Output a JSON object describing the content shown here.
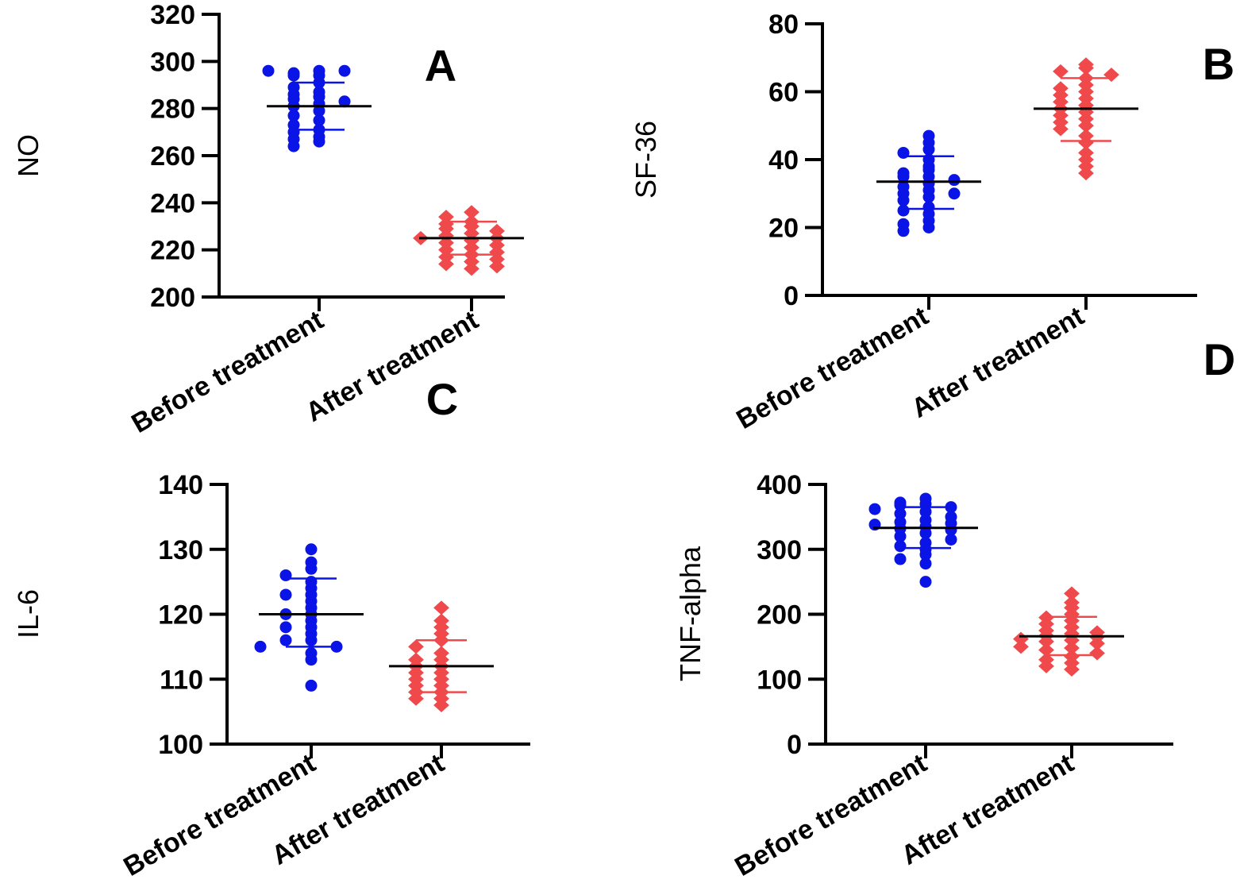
{
  "figure": {
    "colors": {
      "before": "#0a14e6",
      "after": "#f0494c",
      "mean": "#000000",
      "axis": "#000000"
    }
  },
  "chart_data": [
    {
      "type": "scatter",
      "panel": "A",
      "ylabel": "NO",
      "categories": [
        "Before treatment",
        "After treatment"
      ],
      "ylim": [
        200,
        320
      ],
      "yticks": [
        200,
        220,
        240,
        260,
        280,
        300,
        320
      ],
      "series": [
        {
          "name": "Before treatment",
          "marker": "circle",
          "mean": 281,
          "sd_low": 271,
          "sd_high": 291,
          "values": [
            296,
            295,
            294,
            294,
            296,
            296,
            291,
            289,
            287,
            286,
            285,
            284,
            283,
            282,
            281,
            279,
            277,
            275,
            273,
            271,
            270,
            268,
            267,
            266,
            264
          ]
        },
        {
          "name": "After treatment",
          "marker": "diamond",
          "mean": 225,
          "sd_low": 218,
          "sd_high": 232,
          "values": [
            236,
            234,
            232,
            231,
            230,
            229,
            228,
            227,
            226,
            225,
            225,
            224,
            223,
            222,
            221,
            220,
            219,
            218,
            217,
            216,
            215,
            214,
            213,
            212
          ]
        }
      ]
    },
    {
      "type": "scatter",
      "panel": "B",
      "ylabel": "SF-36",
      "categories": [
        "Before treatment",
        "After treatment"
      ],
      "ylim": [
        0,
        80
      ],
      "yticks": [
        0,
        20,
        40,
        60,
        80
      ],
      "series": [
        {
          "name": "Before treatment",
          "marker": "circle",
          "mean": 33.5,
          "sd_low": 25.5,
          "sd_high": 41,
          "values": [
            47,
            45,
            43,
            42,
            40,
            38,
            37,
            36,
            35,
            35,
            34,
            33,
            32,
            31,
            30,
            30,
            29,
            28,
            26,
            25,
            24,
            22,
            21,
            20,
            19
          ]
        },
        {
          "name": "After treatment",
          "marker": "diamond",
          "mean": 55,
          "sd_low": 45.5,
          "sd_high": 64,
          "values": [
            68,
            67,
            66,
            65,
            64,
            62,
            61,
            60,
            59,
            58,
            57,
            56,
            55,
            54,
            53,
            52,
            51,
            50,
            49,
            47,
            45,
            42,
            40,
            38,
            36
          ]
        }
      ]
    },
    {
      "type": "scatter",
      "panel": "C",
      "ylabel": "IL-6",
      "categories": [
        "Before treatment",
        "After treatment"
      ],
      "ylim": [
        100,
        140
      ],
      "yticks": [
        100,
        110,
        120,
        130,
        140
      ],
      "series": [
        {
          "name": "Before treatment",
          "marker": "circle",
          "mean": 120,
          "sd_low": 115,
          "sd_high": 125.5,
          "values": [
            130,
            128,
            127,
            126,
            125,
            124,
            123,
            123,
            122,
            121,
            120,
            120,
            119,
            118,
            118,
            117,
            116,
            116,
            115,
            115,
            114,
            113,
            109
          ]
        },
        {
          "name": "After treatment",
          "marker": "diamond",
          "mean": 112,
          "sd_low": 108,
          "sd_high": 116,
          "values": [
            121,
            119,
            118,
            117,
            116,
            115,
            114,
            113,
            113,
            112,
            112,
            111,
            111,
            110,
            110,
            109,
            109,
            108,
            108,
            107,
            107,
            106
          ]
        }
      ]
    },
    {
      "type": "scatter",
      "panel": "D",
      "ylabel": "TNF-alpha",
      "categories": [
        "Before treatment",
        "After treatment"
      ],
      "ylim": [
        0,
        400
      ],
      "yticks": [
        0,
        100,
        200,
        300,
        400
      ],
      "series": [
        {
          "name": "Before treatment",
          "marker": "circle",
          "mean": 333,
          "sd_low": 302,
          "sd_high": 365,
          "values": [
            378,
            372,
            370,
            368,
            365,
            362,
            358,
            355,
            350,
            345,
            342,
            340,
            338,
            335,
            332,
            330,
            325,
            320,
            315,
            310,
            305,
            300,
            292,
            285,
            278,
            250
          ]
        },
        {
          "name": "After treatment",
          "marker": "diamond",
          "mean": 166,
          "sd_low": 137,
          "sd_high": 196,
          "values": [
            232,
            218,
            210,
            200,
            195,
            190,
            185,
            180,
            175,
            172,
            170,
            167,
            165,
            162,
            160,
            158,
            155,
            150,
            148,
            145,
            140,
            135,
            130,
            125,
            120,
            115
          ]
        }
      ]
    }
  ]
}
